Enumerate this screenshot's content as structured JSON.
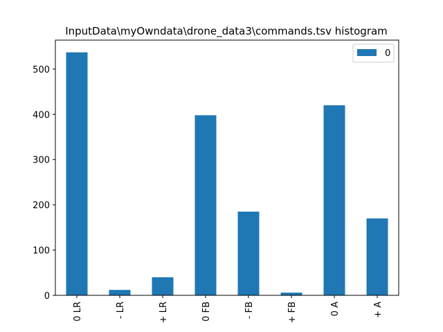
{
  "chart_data": {
    "type": "bar",
    "title": "InputData\\myOwndata\\drone_data3\\commands.tsv histogram",
    "xlabel": "",
    "ylabel": "",
    "categories": [
      "0 LR",
      "- LR",
      "+ LR",
      "0 FB",
      "- FB",
      "+ FB",
      "0 A",
      "+ A"
    ],
    "series": [
      {
        "name": "0",
        "values": [
          537,
          12,
          40,
          398,
          185,
          6,
          420,
          170
        ],
        "color": "#1f77b4"
      }
    ],
    "ylim": [
      0,
      564
    ],
    "yticks": [
      0,
      100,
      200,
      300,
      400,
      500
    ],
    "grid": false,
    "legend": "top-right"
  }
}
